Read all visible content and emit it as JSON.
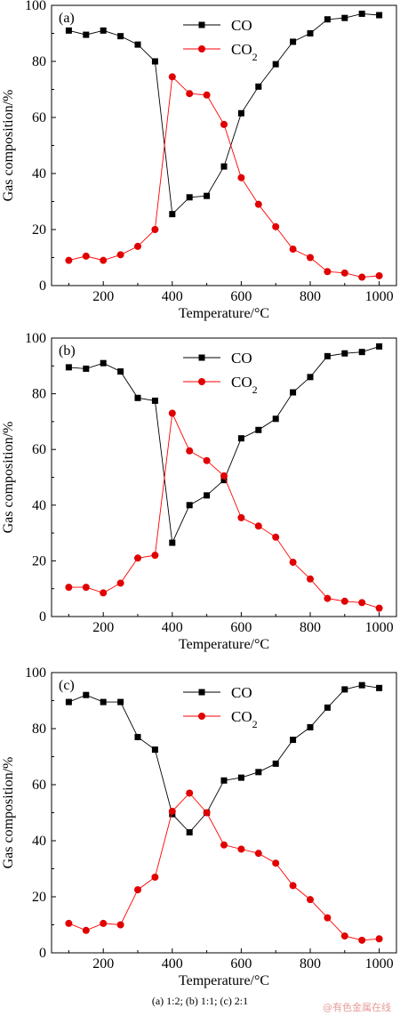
{
  "caption": "(a) 1:2; (b) 1:1; (c) 2:1",
  "watermark": "@有色金属在线",
  "colors": {
    "co": "#000000",
    "co2": "#ff0000",
    "co2_marker": "#e00000"
  },
  "chart_data": [
    {
      "type": "line",
      "panel_label": "(a)",
      "xlabel": "Temperature/°C",
      "ylabel": "Gas composition/%",
      "xlim": [
        50,
        1050
      ],
      "ylim": [
        0,
        100
      ],
      "xticks": [
        200,
        400,
        600,
        800,
        1000
      ],
      "yticks": [
        0,
        20,
        40,
        60,
        80,
        100
      ],
      "legend_position": "top-center",
      "x": [
        100,
        150,
        200,
        250,
        300,
        350,
        400,
        450,
        500,
        550,
        600,
        650,
        700,
        750,
        800,
        850,
        900,
        950,
        1000
      ],
      "series": [
        {
          "name": "CO",
          "marker": "square",
          "values": [
            91,
            89.5,
            91,
            89,
            86,
            80,
            25.5,
            31.5,
            32,
            42.5,
            61.5,
            71,
            79,
            87,
            90,
            95,
            95.5,
            97,
            96.5
          ]
        },
        {
          "name": "CO2",
          "marker": "circle",
          "values": [
            9,
            10.5,
            9,
            11,
            14,
            20,
            74.5,
            68.5,
            68,
            57.5,
            38.5,
            29,
            21,
            13,
            10,
            5,
            4.5,
            3,
            3.5
          ]
        }
      ]
    },
    {
      "type": "line",
      "panel_label": "(b)",
      "xlabel": "Temperature/°C",
      "ylabel": "Gas composition/%",
      "xlim": [
        50,
        1050
      ],
      "ylim": [
        0,
        100
      ],
      "xticks": [
        200,
        400,
        600,
        800,
        1000
      ],
      "yticks": [
        0,
        20,
        40,
        60,
        80,
        100
      ],
      "legend_position": "top-center",
      "x": [
        100,
        150,
        200,
        250,
        300,
        350,
        400,
        450,
        500,
        550,
        600,
        650,
        700,
        750,
        800,
        850,
        900,
        950,
        1000
      ],
      "series": [
        {
          "name": "CO",
          "marker": "square",
          "values": [
            89.5,
            89,
            91,
            88,
            78.5,
            77.5,
            26.5,
            40,
            43.5,
            49,
            64,
            67,
            71,
            80.5,
            86,
            93.5,
            94.5,
            95,
            97
          ]
        },
        {
          "name": "CO2",
          "marker": "circle",
          "values": [
            10.5,
            10.5,
            8.5,
            12,
            21,
            22,
            73,
            59.5,
            56,
            50.5,
            35.5,
            32.5,
            28.5,
            19.5,
            13.5,
            6.5,
            5.5,
            5,
            3
          ]
        }
      ]
    },
    {
      "type": "line",
      "panel_label": "(c)",
      "xlabel": "Temperature/°C",
      "ylabel": "Gas composition/%",
      "xlim": [
        50,
        1050
      ],
      "ylim": [
        0,
        100
      ],
      "xticks": [
        200,
        400,
        600,
        800,
        1000
      ],
      "yticks": [
        0,
        20,
        40,
        60,
        80,
        100
      ],
      "legend_position": "top-center",
      "x": [
        100,
        150,
        200,
        250,
        300,
        350,
        400,
        450,
        500,
        550,
        600,
        650,
        700,
        750,
        800,
        850,
        900,
        950,
        1000
      ],
      "series": [
        {
          "name": "CO",
          "marker": "square",
          "values": [
            89.5,
            92,
            89.5,
            89.5,
            77,
            72.5,
            49.5,
            43,
            50,
            61.5,
            62.5,
            64.5,
            67.5,
            76,
            80.5,
            87.5,
            94,
            95.5,
            94.5
          ]
        },
        {
          "name": "CO2",
          "marker": "circle",
          "values": [
            10.5,
            8,
            10.5,
            10,
            22.5,
            27,
            50.5,
            57,
            50,
            38.5,
            37,
            35.5,
            32,
            24,
            19,
            12.5,
            6,
            4.5,
            5
          ]
        }
      ]
    }
  ]
}
